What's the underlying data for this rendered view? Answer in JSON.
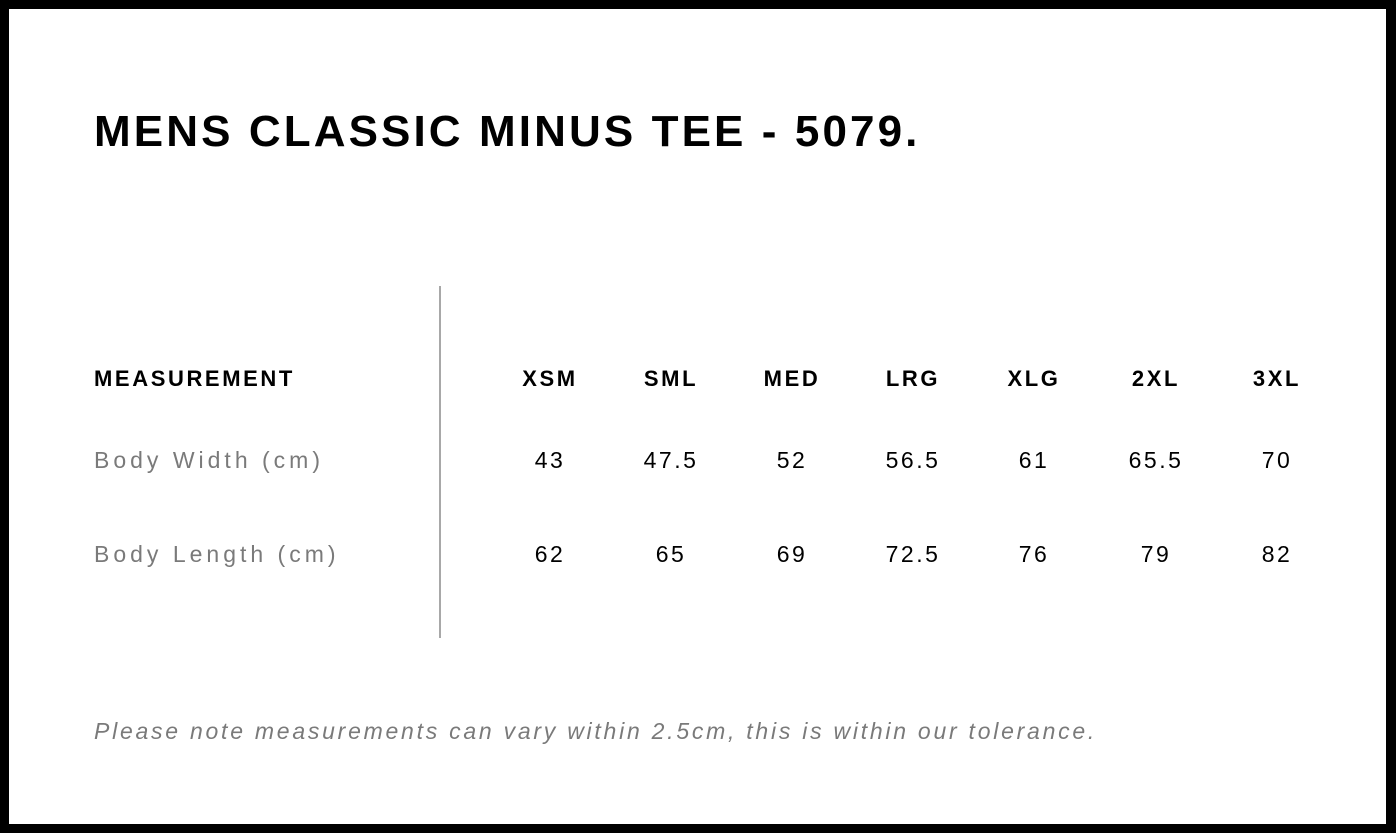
{
  "title": "MENS CLASSIC MINUS TEE - 5079.",
  "table": {
    "header": {
      "label": "MEASUREMENT",
      "sizes": [
        "XSM",
        "SML",
        "MED",
        "LRG",
        "XLG",
        "2XL",
        "3XL"
      ]
    },
    "rows": [
      {
        "label": "Body Width (cm)",
        "values": [
          "43",
          "47.5",
          "52",
          "56.5",
          "61",
          "65.5",
          "70"
        ]
      },
      {
        "label": "Body Length (cm)",
        "values": [
          "62",
          "65",
          "69",
          "72.5",
          "76",
          "79",
          "82"
        ]
      }
    ]
  },
  "note": "Please note measurements can vary within 2.5cm, this is within our tolerance."
}
